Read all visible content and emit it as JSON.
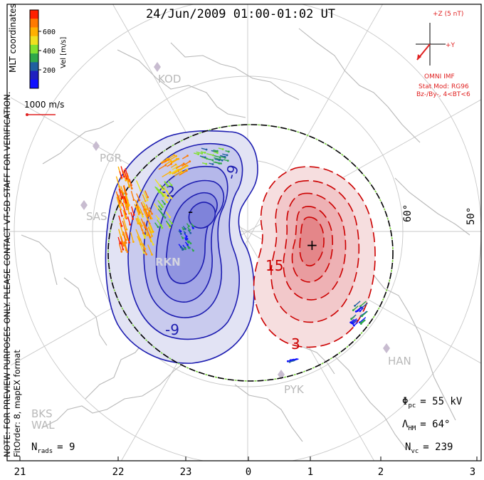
{
  "title": "24/Jun/2009 01:00-01:02 UT",
  "colorbar": {
    "coords_label": "MLT coordinates",
    "unit_label": "Vel [m/s]",
    "ticks": [
      "600",
      "400",
      "200"
    ],
    "colors": [
      "#ff2000",
      "#ff7a00",
      "#ffb000",
      "#f0e020",
      "#80e030",
      "#2ea84a",
      "#2060a0",
      "#2020c0",
      "#1010ff"
    ]
  },
  "reference_vector_label": "1000 m/s",
  "imf": {
    "z_label": "+Z (5 nT)",
    "y_label": "+Y",
    "source": "OMNI IMF",
    "stat_model": "Stat Mod: RG96",
    "condition": "Bz-/By-, 4<BT<6"
  },
  "latitude_labels": [
    "60°",
    "50°"
  ],
  "stations": [
    "KOD",
    "PGR",
    "SAS",
    "RKN",
    "HAN",
    "PYK",
    "BKS",
    "WAL"
  ],
  "contour_labels": {
    "negative": [
      "-2",
      "-9",
      "-9",
      "-"
    ],
    "positive": [
      "15",
      "3",
      "+"
    ]
  },
  "note": "NOTE: FOR PREVIEW PURPOSES ONLY. PLEASE CONTACT VT-SD STAFF FOR VERIFICATION.",
  "fit_order": "FitOrder: 8, mapEX format",
  "stats": {
    "n_rads_label": "N",
    "n_rads_sub": "rads",
    "n_rads_value": "= 9",
    "phi_label": "Φ",
    "phi_sub": "pc",
    "phi_value": "= 55 kV",
    "lambda_label": "Λ",
    "lambda_sub": "HM",
    "lambda_value": "= 64°",
    "nvc_label": "N",
    "nvc_sub": "vc",
    "nvc_value": "= 239"
  },
  "mlt_ticks": [
    "21",
    "22",
    "23",
    "0",
    "1",
    "2",
    "3"
  ]
}
